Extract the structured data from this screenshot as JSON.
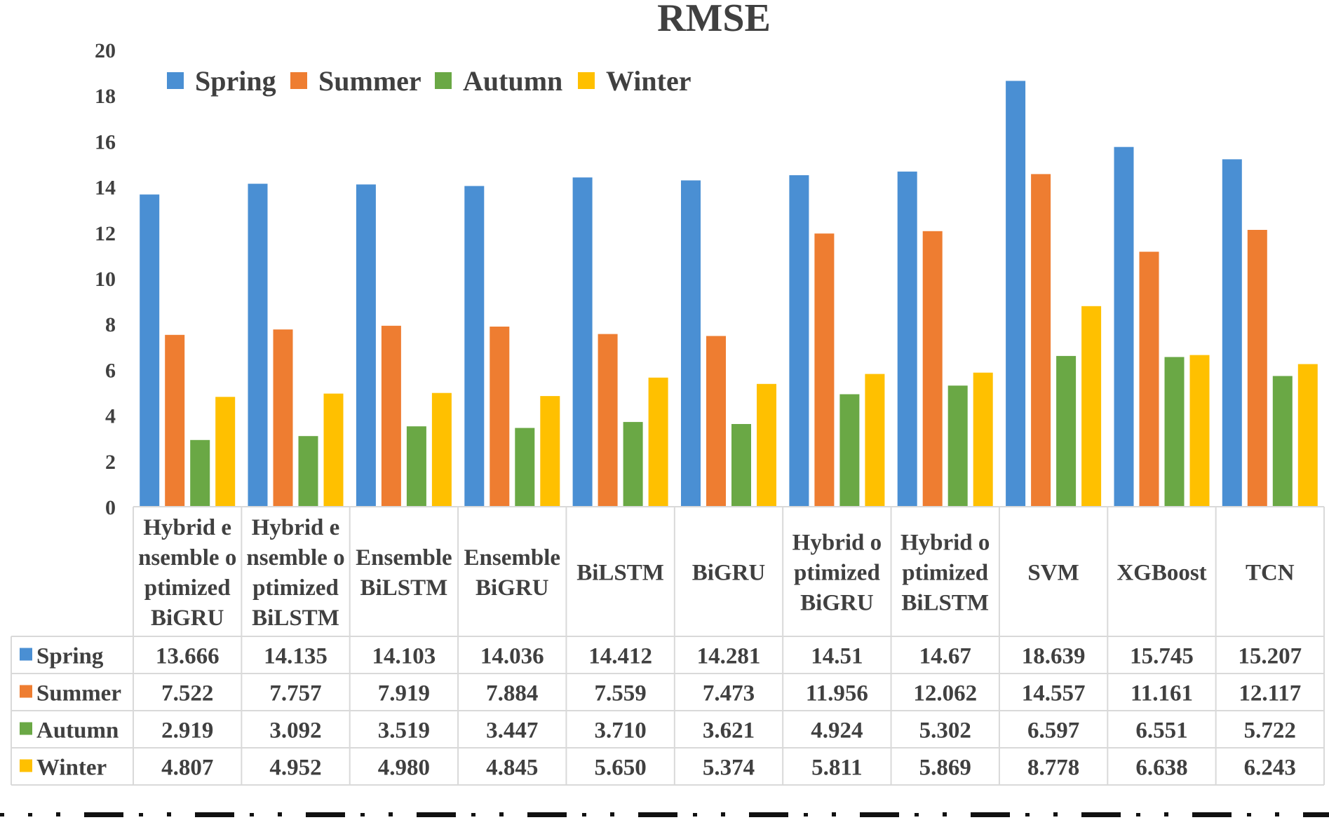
{
  "chart_data": {
    "type": "bar",
    "title": "RMSE",
    "xlabel": "",
    "ylabel": "",
    "ylim": [
      0,
      20
    ],
    "yticks": [
      0,
      2,
      4,
      6,
      8,
      10,
      12,
      14,
      16,
      18,
      20
    ],
    "legend_position": "top-left",
    "grid": false,
    "categories": [
      [
        "Hybrid e",
        "nsemble o",
        "ptimized",
        "BiGRU"
      ],
      [
        "Hybrid e",
        "nsemble o",
        "ptimized",
        "BiLSTM"
      ],
      [
        "Ensemble",
        "BiLSTM"
      ],
      [
        "Ensemble",
        "BiGRU"
      ],
      [
        "BiLSTM"
      ],
      [
        "BiGRU"
      ],
      [
        "Hybrid o",
        "ptimized",
        "BiGRU"
      ],
      [
        "Hybrid o",
        "ptimized",
        "BiLSTM"
      ],
      [
        "SVM"
      ],
      [
        "XGBoost"
      ],
      [
        "TCN"
      ]
    ],
    "series": [
      {
        "name": "Spring",
        "color": "#4a8fd3",
        "values": [
          13.666,
          14.135,
          14.103,
          14.036,
          14.412,
          14.281,
          14.51,
          14.67,
          18.639,
          15.745,
          15.207
        ],
        "labels": [
          "13.666",
          "14.135",
          "14.103",
          "14.036",
          "14.412",
          "14.281",
          "14.51",
          "14.67",
          "18.639",
          "15.745",
          "15.207"
        ]
      },
      {
        "name": "Summer",
        "color": "#ee7d31",
        "values": [
          7.522,
          7.757,
          7.919,
          7.884,
          7.559,
          7.473,
          11.956,
          12.062,
          14.557,
          11.161,
          12.117
        ],
        "labels": [
          "7.522",
          "7.757",
          "7.919",
          "7.884",
          "7.559",
          "7.473",
          "11.956",
          "12.062",
          "14.557",
          "11.161",
          "12.117"
        ]
      },
      {
        "name": "Autumn",
        "color": "#6aa845",
        "values": [
          2.919,
          3.092,
          3.519,
          3.447,
          3.71,
          3.621,
          4.924,
          5.302,
          6.597,
          6.551,
          5.722
        ],
        "labels": [
          "2.919",
          "3.092",
          "3.519",
          "3.447",
          "3.710",
          "3.621",
          "4.924",
          "5.302",
          "6.597",
          "6.551",
          "5.722"
        ]
      },
      {
        "name": "Winter",
        "color": "#ffc000",
        "values": [
          4.807,
          4.952,
          4.98,
          4.845,
          5.65,
          5.374,
          5.811,
          5.869,
          8.778,
          6.638,
          6.243
        ],
        "labels": [
          "4.807",
          "4.952",
          "4.980",
          "4.845",
          "5.650",
          "5.374",
          "5.811",
          "5.869",
          "8.778",
          "6.638",
          "6.243"
        ]
      }
    ]
  }
}
